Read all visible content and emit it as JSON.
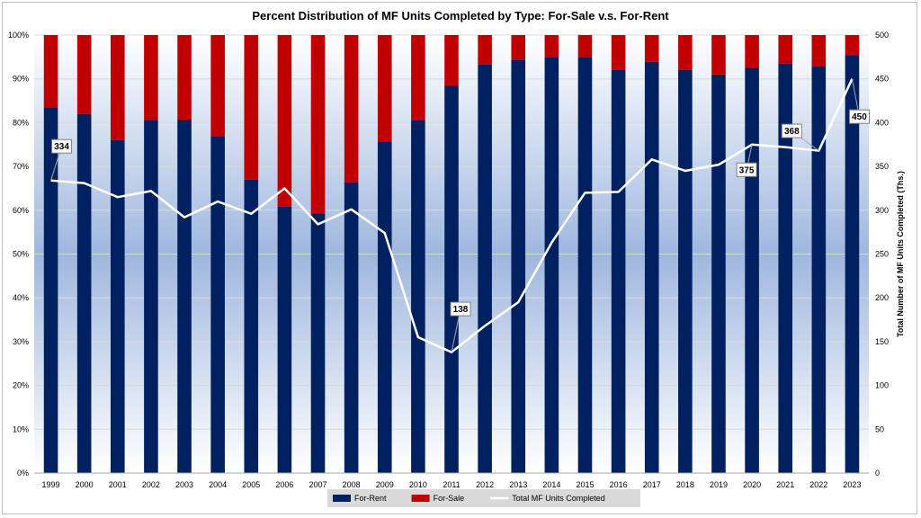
{
  "chart_data": {
    "type": "bar",
    "title": "Percent Distribution of MF Units Completed by Type: For-Sale v.s. For-Rent",
    "ylabel_right": "Total Number of MF Units Completed (Ths.)",
    "categories": [
      "1999",
      "2000",
      "2001",
      "2002",
      "2003",
      "2004",
      "2005",
      "2006",
      "2007",
      "2008",
      "2009",
      "2010",
      "2011",
      "2012",
      "2013",
      "2014",
      "2015",
      "2016",
      "2017",
      "2018",
      "2019",
      "2020",
      "2021",
      "2022",
      "2023"
    ],
    "ylim": [
      0,
      100
    ],
    "y2lim": [
      0,
      500
    ],
    "y_ticks": [
      "0%",
      "10%",
      "20%",
      "30%",
      "40%",
      "50%",
      "60%",
      "70%",
      "80%",
      "90%",
      "100%"
    ],
    "y2_ticks": [
      "0",
      "50",
      "100",
      "150",
      "200",
      "250",
      "300",
      "350",
      "400",
      "450",
      "500"
    ],
    "series": [
      {
        "name": "For-Rent",
        "kind": "stacked-bar",
        "color": "#002060",
        "values": [
          83.5,
          82,
          76,
          80.5,
          80.7,
          76.8,
          67,
          60.8,
          59.3,
          66.4,
          75.7,
          80.5,
          88.4,
          93.3,
          94.4,
          95,
          95,
          92,
          93.9,
          92,
          91,
          92.5,
          93.5,
          92.8,
          95.4
        ]
      },
      {
        "name": "For-Sale",
        "kind": "stacked-bar",
        "color": "#c00000",
        "values": [
          16.5,
          18,
          24,
          19.5,
          19.3,
          23.2,
          33,
          39.2,
          40.7,
          33.6,
          24.3,
          19.5,
          11.6,
          6.7,
          5.6,
          5,
          5,
          8,
          6.1,
          8,
          9,
          7.5,
          6.5,
          7.2,
          4.6
        ]
      },
      {
        "name": "Total MF Units Completed",
        "kind": "line",
        "axis": "right",
        "color": "#ffffff",
        "values": [
          334,
          331,
          315,
          322,
          292,
          310,
          296,
          325,
          284,
          301,
          274,
          155,
          138,
          168,
          195,
          263,
          320,
          321,
          358,
          345,
          352,
          375,
          372,
          368,
          450
        ]
      }
    ],
    "annotations": [
      {
        "category": "1999",
        "label": "334"
      },
      {
        "category": "2011",
        "label": "138"
      },
      {
        "category": "2020",
        "label": "375"
      },
      {
        "category": "2022",
        "label": "368"
      },
      {
        "category": "2023",
        "label": "450"
      }
    ],
    "grid": true,
    "legend": "bottom"
  }
}
